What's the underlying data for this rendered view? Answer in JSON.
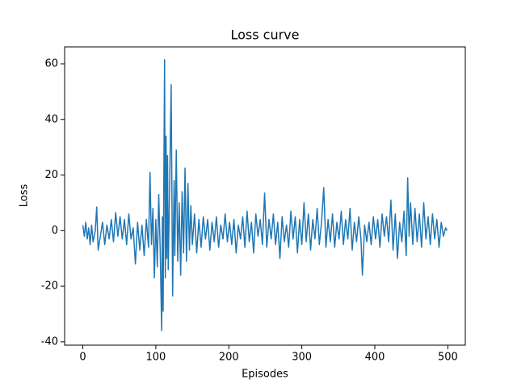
{
  "chart_data": {
    "type": "line",
    "title": "Loss curve",
    "x_label": "Episodes",
    "y_label": "Loss",
    "x": [
      0,
      2,
      4,
      6,
      8,
      10,
      12,
      14,
      17,
      19,
      21,
      24,
      27,
      30,
      33,
      36,
      39,
      42,
      45,
      48,
      51,
      54,
      57,
      60,
      63,
      66,
      69,
      72,
      75,
      78,
      81,
      84,
      87,
      90,
      92,
      94,
      96,
      98,
      100,
      102,
      104,
      106,
      108,
      109,
      110,
      111,
      112,
      113,
      114,
      115,
      116,
      117,
      119,
      121,
      123,
      125,
      126,
      128,
      130,
      132,
      134,
      136,
      138,
      140,
      142,
      144,
      146,
      148,
      150,
      153,
      156,
      159,
      162,
      165,
      168,
      171,
      174,
      177,
      180,
      183,
      186,
      189,
      192,
      195,
      198,
      201,
      204,
      207,
      210,
      213,
      216,
      219,
      222,
      225,
      228,
      231,
      234,
      237,
      240,
      243,
      246,
      249,
      252,
      255,
      258,
      261,
      264,
      267,
      270,
      273,
      276,
      279,
      282,
      285,
      288,
      291,
      294,
      297,
      300,
      303,
      306,
      309,
      312,
      315,
      318,
      321,
      324,
      327,
      330,
      333,
      336,
      339,
      342,
      345,
      348,
      351,
      354,
      357,
      360,
      363,
      366,
      369,
      372,
      375,
      378,
      381,
      383,
      386,
      389,
      392,
      395,
      398,
      401,
      404,
      407,
      410,
      413,
      416,
      419,
      422,
      425,
      428,
      431,
      434,
      437,
      440,
      443,
      445,
      447,
      449,
      452,
      455,
      458,
      461,
      464,
      467,
      470,
      473,
      476,
      479,
      482,
      485,
      488,
      491,
      494,
      497,
      499
    ],
    "series": [
      {
        "name": "Loss",
        "color": "#1f77b4",
        "values": [
          2,
          -2,
          3,
          -3,
          1,
          -5,
          2,
          -4,
          0,
          8.5,
          -7,
          -2,
          3,
          -5,
          2,
          -3,
          4,
          -4,
          6.5,
          -2,
          5,
          -3,
          4,
          -5,
          6,
          -3,
          1,
          -12,
          3,
          -7,
          2,
          -9,
          4,
          -6,
          21,
          -5,
          8,
          -17,
          4,
          -13,
          13,
          -7,
          -36,
          5,
          -29,
          20,
          61.5,
          -17,
          34,
          -10,
          27,
          -14,
          18,
          52.5,
          -23.5,
          18,
          -9,
          29,
          -11,
          10,
          -16,
          14,
          -8,
          22.5,
          -11,
          17,
          -7,
          9,
          -5,
          6,
          -8,
          4,
          -6,
          5,
          -3,
          4,
          -7,
          3,
          -4,
          5,
          -6,
          2,
          -3,
          6,
          -4,
          3,
          -5,
          4,
          -8,
          2,
          -3,
          5,
          -6,
          7,
          -4,
          3,
          -8,
          6,
          -2,
          4,
          -5,
          13.5,
          -6,
          4,
          -3,
          6,
          -5,
          3,
          -10,
          5,
          -4,
          2,
          -6,
          7,
          -3,
          5,
          -8,
          4,
          -5,
          10,
          -4,
          6,
          -7,
          4,
          -3,
          8,
          -5,
          3,
          15.5,
          -6,
          4,
          -4,
          6,
          -6,
          3,
          -3,
          7,
          -5,
          4,
          -3,
          8,
          -7,
          3,
          -4,
          5,
          -3,
          -16,
          2,
          -4,
          3,
          -5,
          5,
          -3,
          4,
          -6,
          6,
          -2,
          5,
          -4,
          11,
          -7,
          6,
          -10,
          3,
          -4,
          7,
          -9,
          19,
          -2,
          10,
          -5,
          8,
          -4,
          6,
          -6,
          10,
          -3,
          5,
          -5,
          6,
          -3,
          4,
          -6,
          3,
          -2,
          1,
          0
        ]
      }
    ],
    "xlim": [
      -24.95,
      523.95
    ],
    "ylim": [
      -41.2,
      66.1
    ],
    "xticks": [
      0,
      100,
      200,
      300,
      400,
      500
    ],
    "yticks": [
      -40,
      -20,
      0,
      20,
      40,
      60
    ],
    "grid": false
  }
}
